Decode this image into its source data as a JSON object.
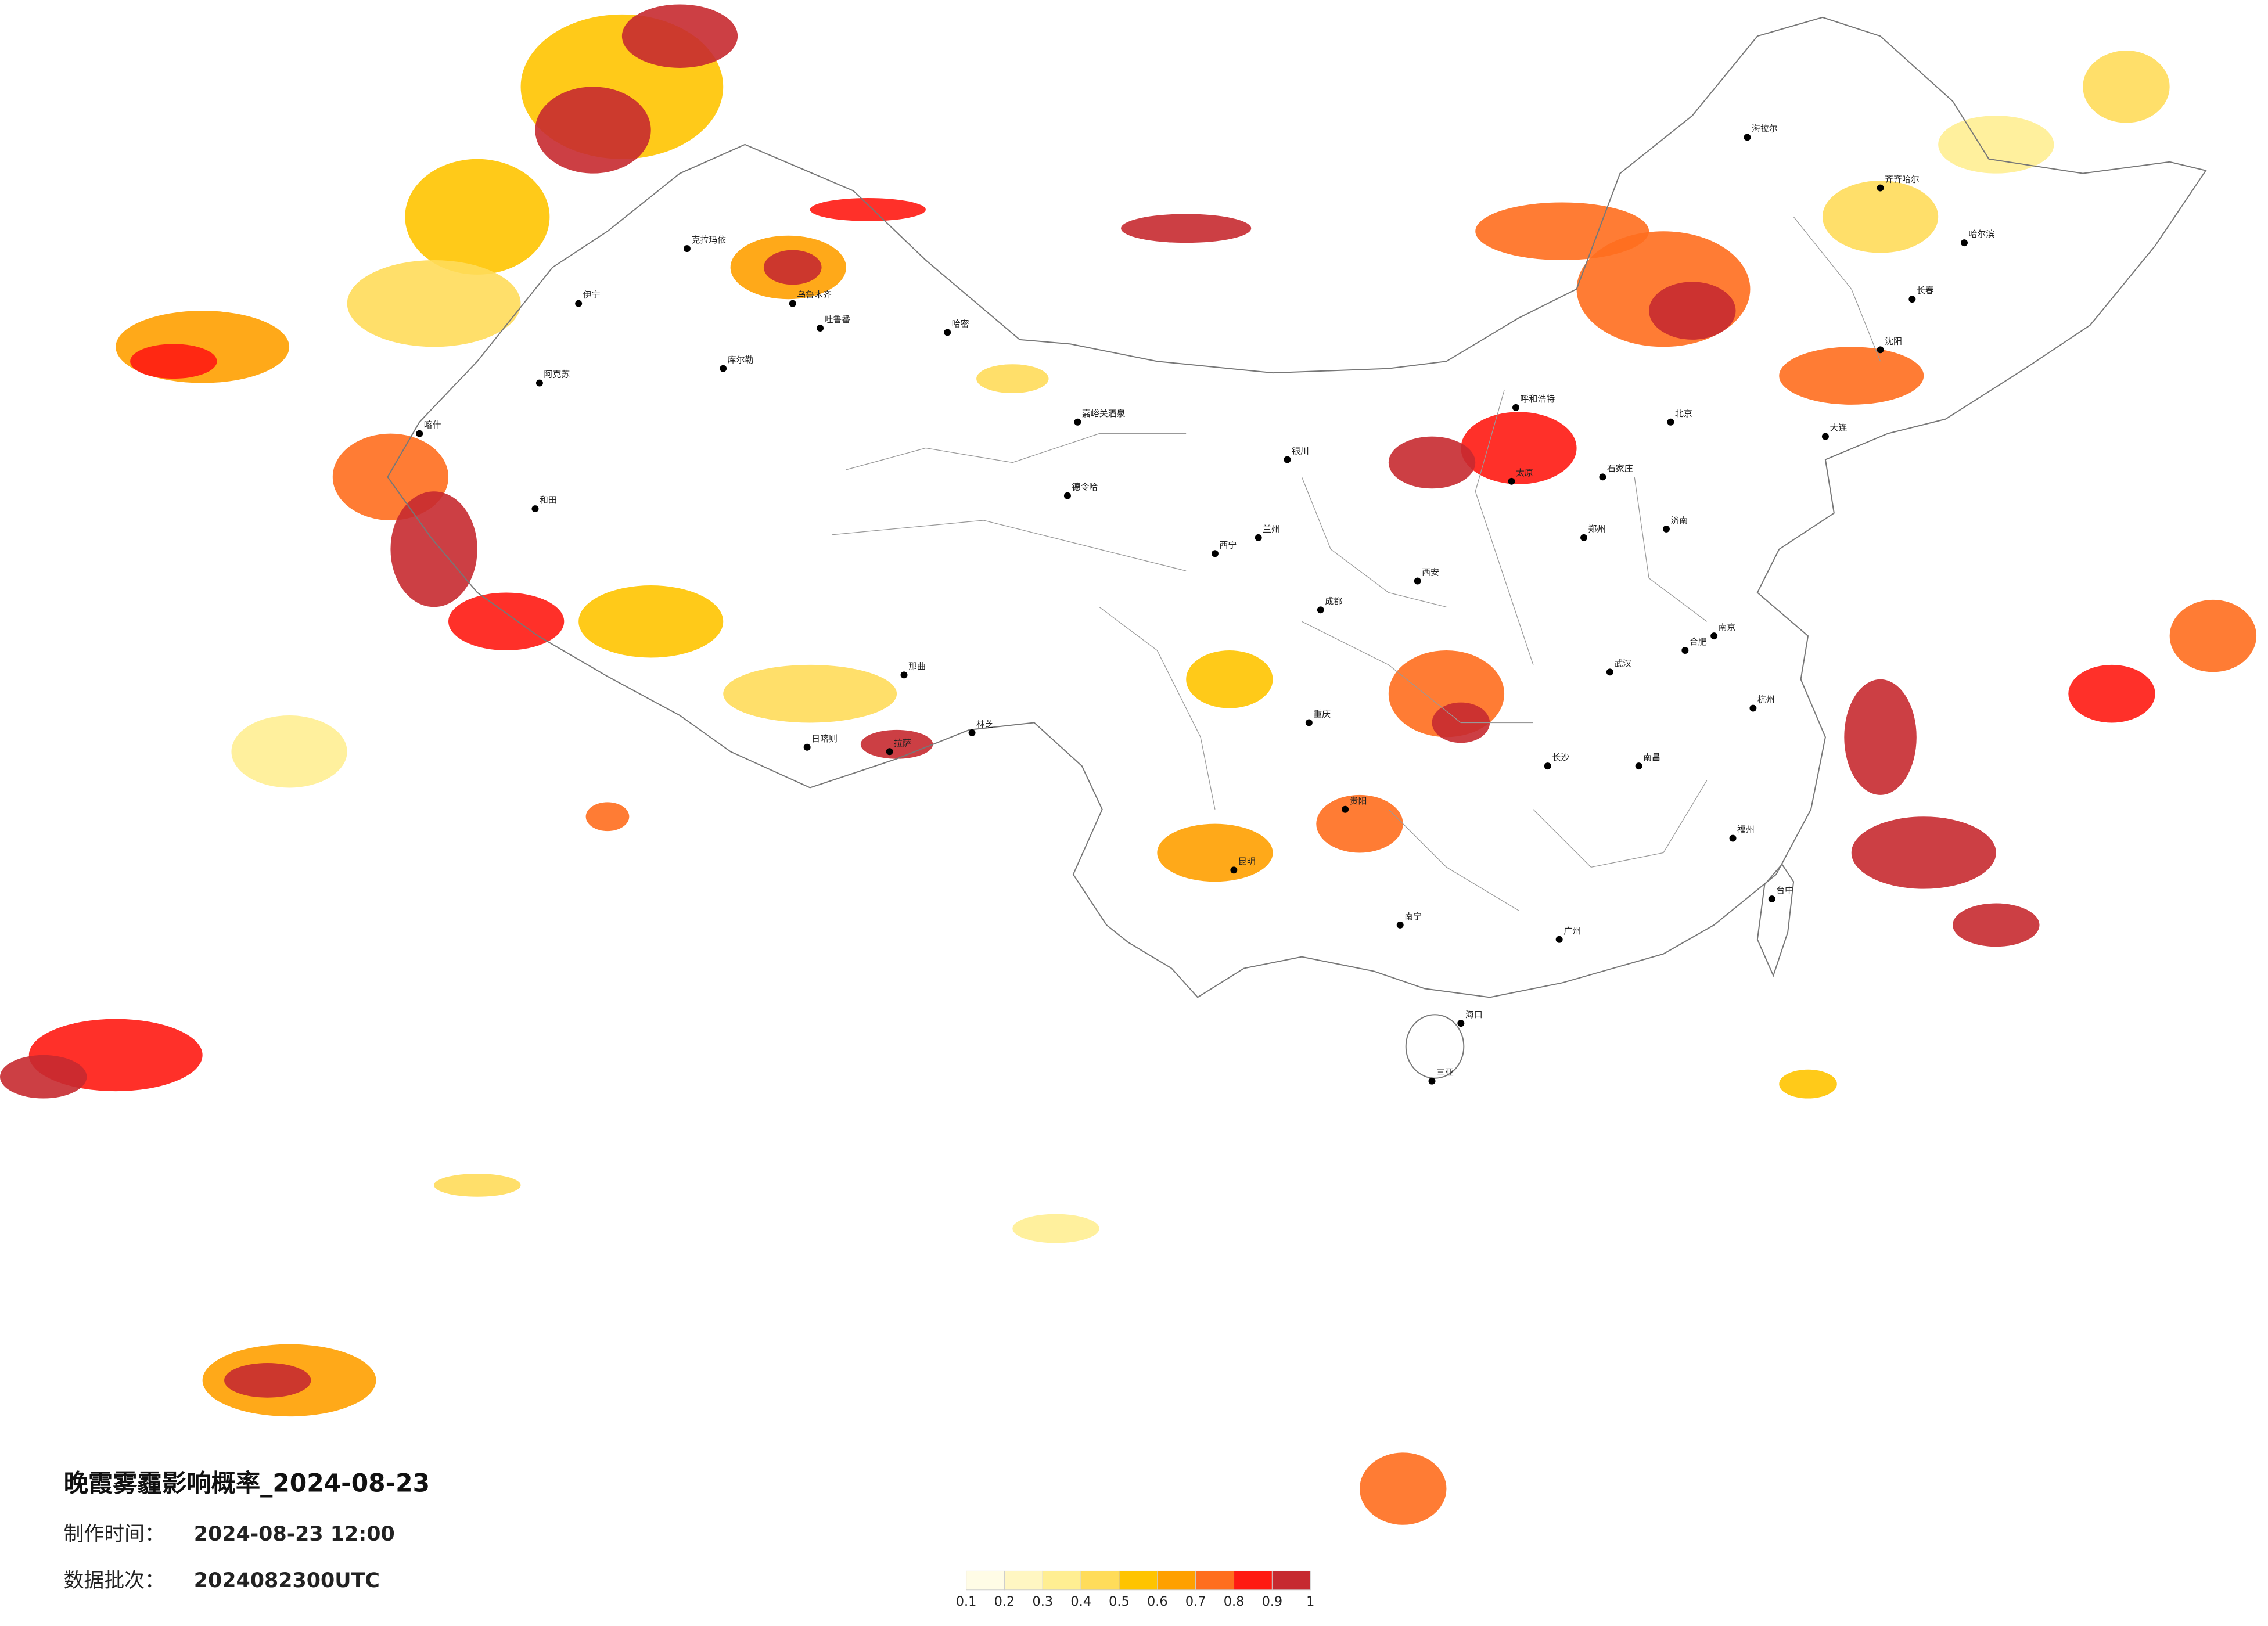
{
  "map": {
    "title": "晚霞雾霾影响概率_2024-08-23",
    "made_label": "制作时间：",
    "made_time": "2024-08-23 12:00",
    "batch_label": "数据批次：",
    "batch": "2024082300UTC",
    "legend": {
      "ticks": [
        0.1,
        0.2,
        0.3,
        0.4,
        0.5,
        0.6,
        0.7,
        0.8,
        0.9,
        1
      ],
      "colors": [
        "#fffce6",
        "#fff6c2",
        "#ffee92",
        "#ffdc5a",
        "#ffc400",
        "#ffa000",
        "#ff6e1e",
        "#ff1a12",
        "#c62a30"
      ]
    },
    "cities": [
      "克拉玛依",
      "乌鲁木齐",
      "吐鲁番",
      "哈密",
      "伊宁",
      "阿克苏",
      "库尔勒",
      "喀什",
      "和田",
      "嘉峪关酒泉",
      "德令哈",
      "西宁",
      "兰州",
      "银川",
      "呼和浩特",
      "海拉尔",
      "齐齐哈尔",
      "哈尔滨",
      "长春",
      "沈阳",
      "大连",
      "北京",
      "石家庄",
      "太原",
      "济南",
      "郑州",
      "西安",
      "成都",
      "重庆",
      "武汉",
      "合肥",
      "南京",
      "杭州",
      "南昌",
      "长沙",
      "福州",
      "贵阳",
      "昆明",
      "南宁",
      "广州",
      "海口",
      "三亚",
      "台中",
      "那曲",
      "日喀则",
      "林芝",
      "拉萨"
    ]
  }
}
